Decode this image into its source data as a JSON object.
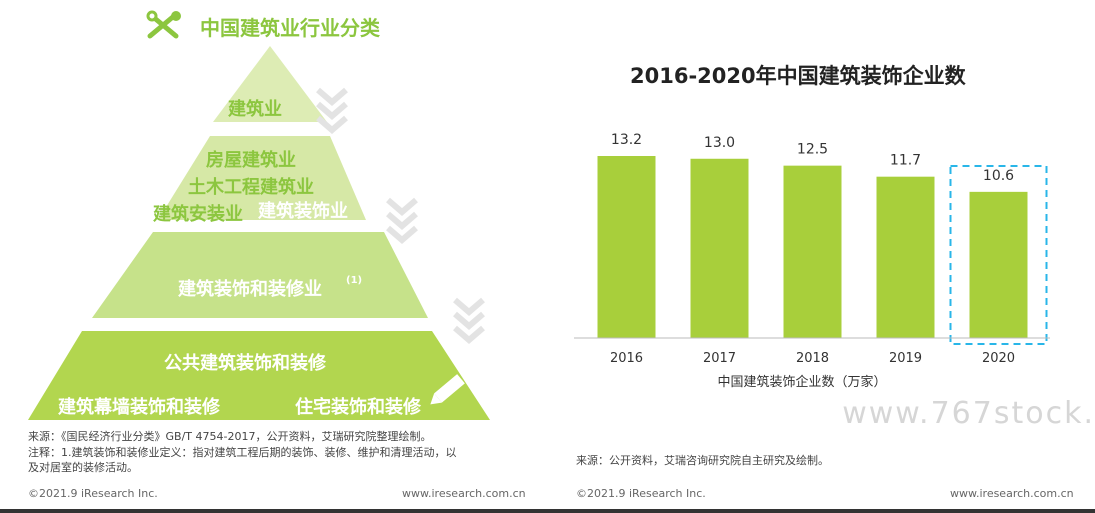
{
  "left": {
    "title": "中国建筑业行业分类",
    "tiers": {
      "t1": "建筑业",
      "t2a": "房屋建筑业",
      "t2b": "土木工程建筑业",
      "t2c": "建筑安装业",
      "t2d": "建筑装饰业",
      "t3": "建筑装饰和装修业",
      "t3_sup": "(1)",
      "t4a": "公共建筑装饰和装修",
      "t4b": "建筑幕墙装饰和装修",
      "t4c": "住宅装饰和装修"
    },
    "source": "来源：《国民经济行业分类》GB/T 4754-2017，公开资料，艾瑞研究院整理绘制。",
    "note_line1": "注释：1.建筑装饰和装修业定义：指对建筑工程后期的装饰、装修、维护和清理活动，以",
    "note_line2": "及对居室的装修活动。",
    "copyright": "©2021.9 iResearch Inc.",
    "site": "www.iresearch.com.cn"
  },
  "right": {
    "source": "来源：公开资料，艾瑞咨询研究院自主研究及绘制。",
    "copyright": "©2021.9 iResearch Inc.",
    "site": "www.iresearch.com.cn"
  },
  "watermark": "www.767stock.",
  "colors": {
    "bar": "#a8cf3b",
    "highlight_border": "#29b6e8",
    "pyramid_light": "#ddecb4",
    "pyramid_mid": "#c6e28a",
    "pyramid_dark": "#b2d64f"
  },
  "chart_data": {
    "type": "bar",
    "title": "2016-2020年中国建筑装饰企业数",
    "categories": [
      "2016",
      "2017",
      "2018",
      "2019",
      "2020"
    ],
    "values": [
      13.2,
      13.0,
      12.5,
      11.7,
      10.6
    ],
    "data_labels": [
      "13.2",
      "13.0",
      "12.5",
      "11.7",
      "10.6"
    ],
    "xlabel": "中国建筑装饰企业数（万家）",
    "ylabel": "",
    "ylim": [
      0,
      13.2
    ],
    "highlight": "2020",
    "grid": false
  }
}
